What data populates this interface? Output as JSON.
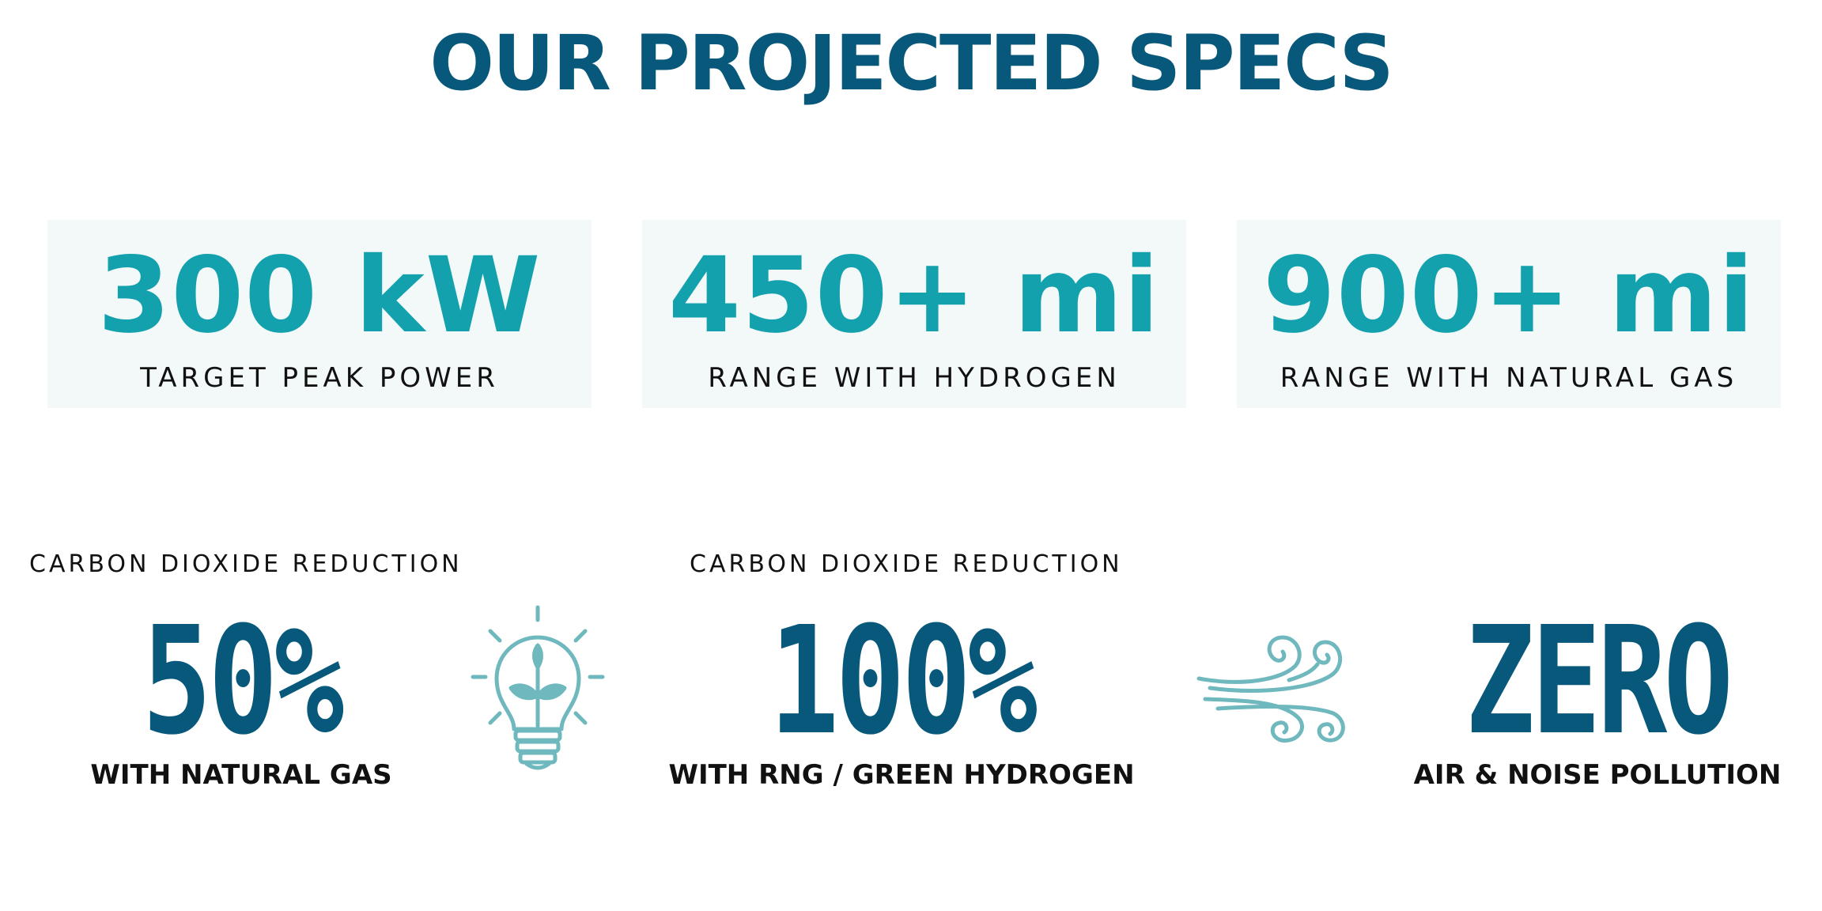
{
  "title": "OUR PROJECTED SPECS",
  "specs": [
    {
      "value": "300 kW",
      "label": "TARGET PEAK POWER"
    },
    {
      "value": "450+ mi",
      "label": "RANGE WITH HYDROGEN"
    },
    {
      "value": "900+ mi",
      "label": "RANGE WITH NATURAL GAS"
    }
  ],
  "stats": [
    {
      "overline": "CARBON DIOXIDE REDUCTION",
      "value": "50%",
      "caption": "WITH NATURAL GAS"
    },
    {
      "overline": "CARBON DIOXIDE REDUCTION",
      "value": "100%",
      "caption": "WITH RNG / GREEN HYDROGEN"
    },
    {
      "overline": "",
      "value": "ZERO",
      "caption": "AIR & NOISE POLLUTION"
    }
  ],
  "icons": [
    "lightbulb-leaf-icon",
    "wind-icon"
  ],
  "colors": {
    "title": "#07587a",
    "spec_value": "#12a1ad",
    "card_bg": "#f3f9f9",
    "stat_value": "#07587a",
    "icon": "#6fb8be",
    "text": "#111111"
  }
}
